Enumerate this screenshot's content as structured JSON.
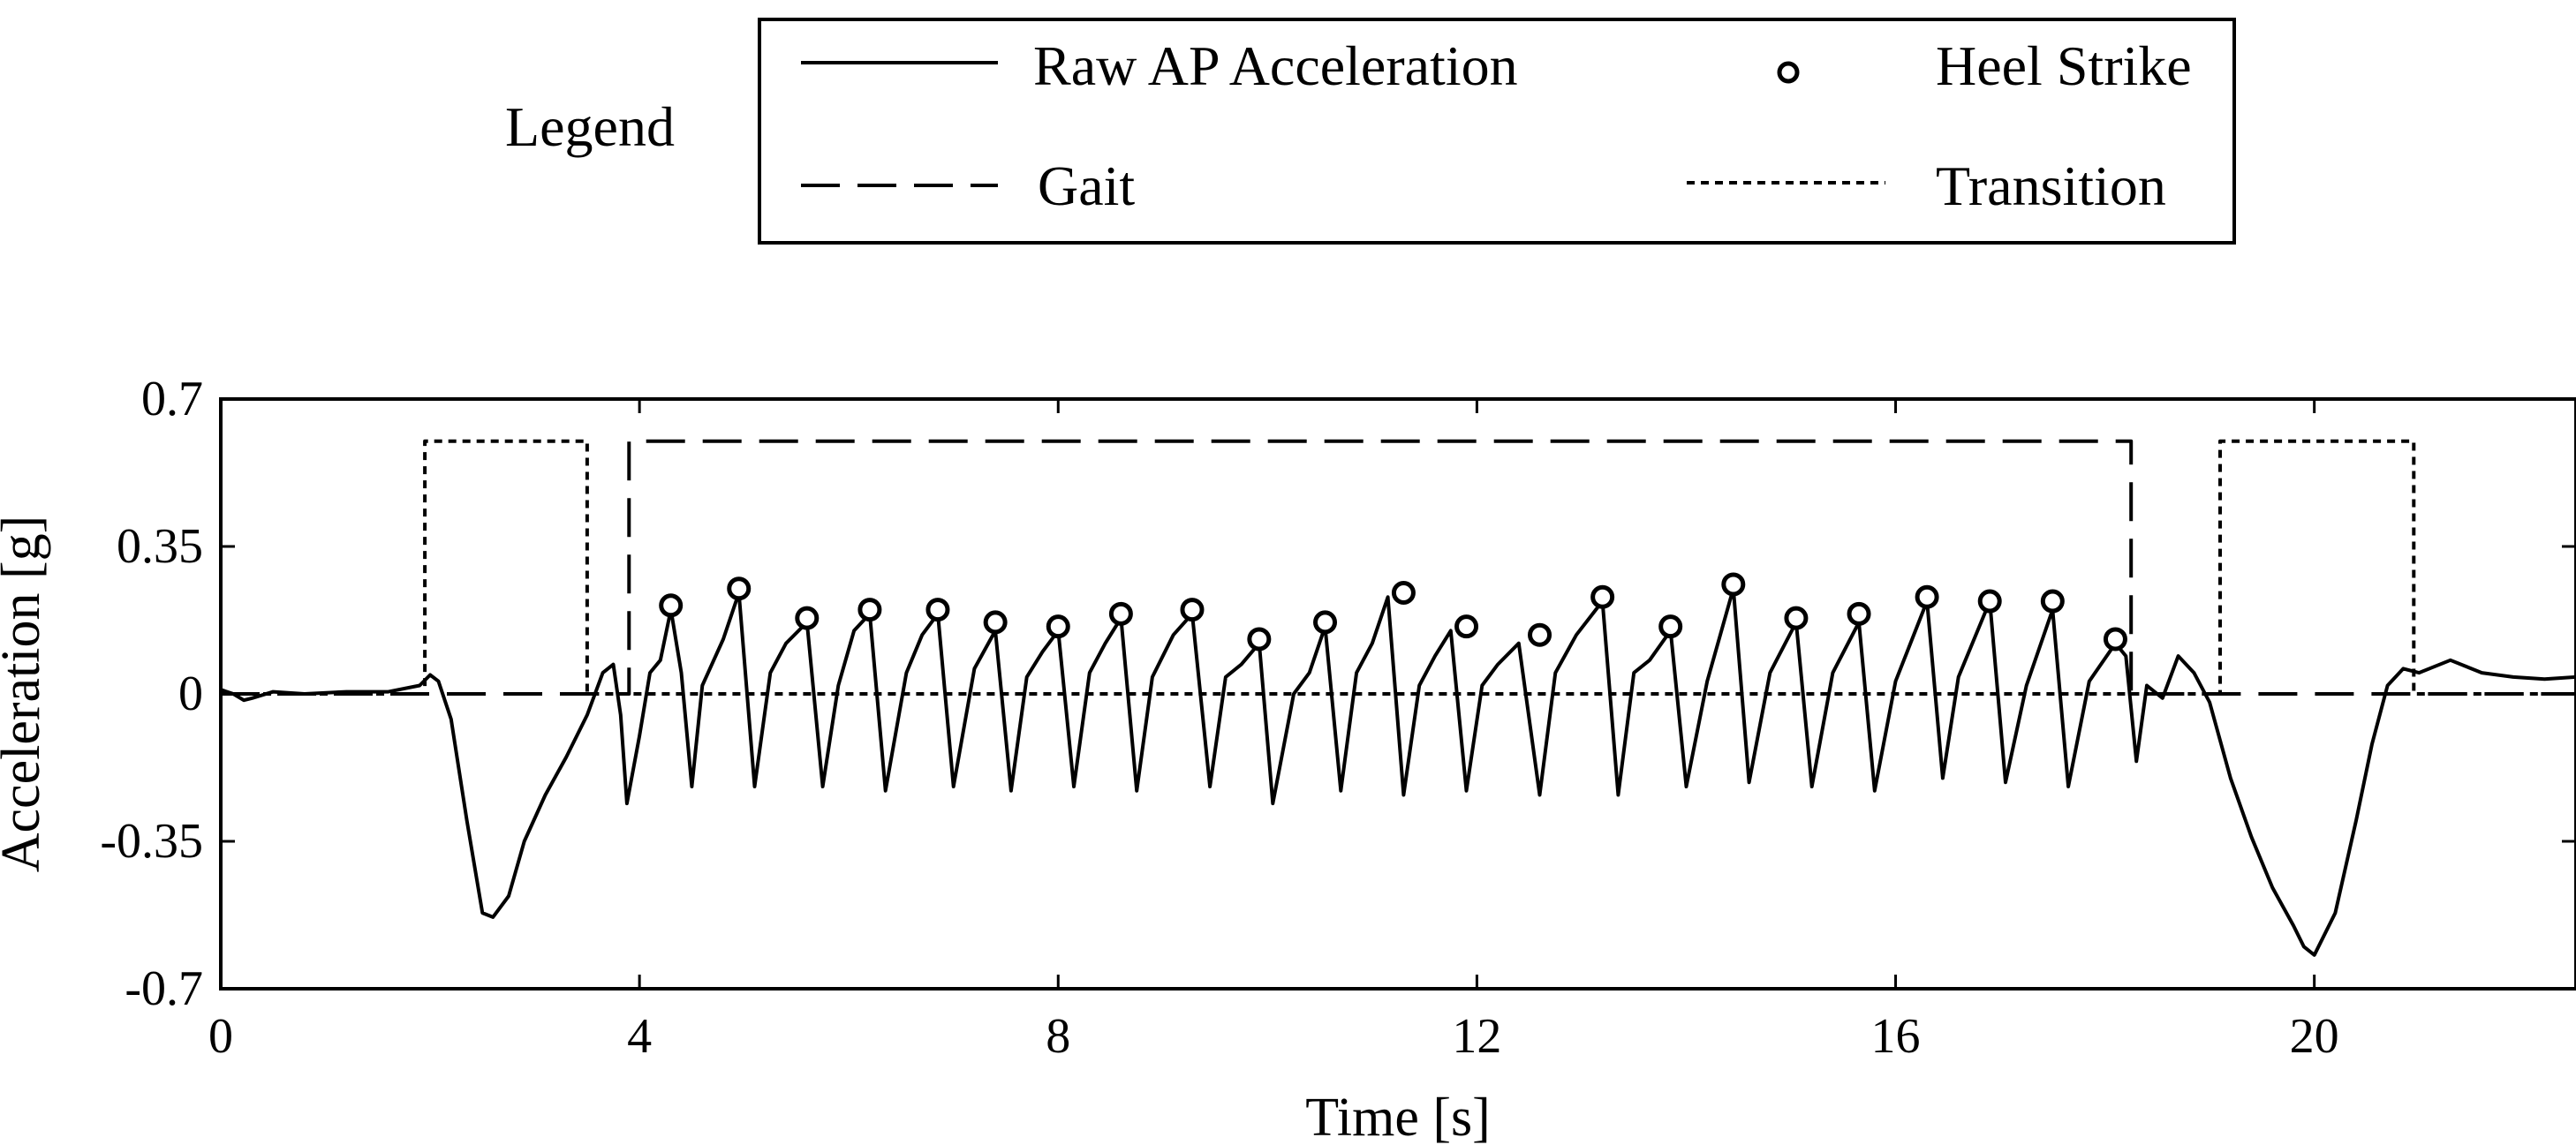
{
  "chart_data": {
    "type": "line",
    "title": "",
    "xlabel": "Time [s]",
    "ylabel": "Acceleration [g]",
    "xlim": [
      0,
      22.5
    ],
    "ylim": [
      -0.7,
      0.7
    ],
    "x_ticks": [
      0,
      4,
      8,
      12,
      16,
      20
    ],
    "y_ticks": [
      -0.7,
      -0.35,
      0,
      0.35,
      0.7
    ],
    "x_tick_labels": [
      "0",
      "4",
      "8",
      "12",
      "16",
      "20"
    ],
    "y_tick_labels": [
      "-0.7",
      "-0.35",
      "0",
      "0.35",
      "0.7"
    ],
    "grid": false,
    "legend": {
      "title": "Legend",
      "placement": "top-center",
      "entries": [
        {
          "label": "Raw AP Acceleration",
          "style": "solid"
        },
        {
          "label": "Heel Strike",
          "style": "circle-marker"
        },
        {
          "label": "Gait",
          "style": "dashed"
        },
        {
          "label": "Transition",
          "style": "dotted"
        }
      ]
    },
    "series": [
      {
        "name": "Raw AP Acceleration",
        "style": "solid",
        "x": [
          0,
          0.12,
          0.22,
          0.3,
          0.5,
          0.8,
          1.2,
          1.6,
          1.9,
          2.0,
          2.08,
          2.2,
          2.35,
          2.5,
          2.6,
          2.75,
          2.9,
          3.1,
          3.3,
          3.5,
          3.65,
          3.75,
          3.82,
          3.88,
          4.0,
          4.1,
          4.2,
          4.3,
          4.4,
          4.5,
          4.6,
          4.8,
          4.95,
          5.1,
          5.25,
          5.4,
          5.6,
          5.75,
          5.9,
          6.05,
          6.2,
          6.35,
          6.55,
          6.7,
          6.85,
          7.0,
          7.2,
          7.4,
          7.55,
          7.7,
          7.85,
          8.0,
          8.15,
          8.3,
          8.45,
          8.6,
          8.75,
          8.9,
          9.1,
          9.28,
          9.45,
          9.6,
          9.75,
          9.92,
          10.05,
          10.25,
          10.4,
          10.55,
          10.7,
          10.85,
          11.0,
          11.15,
          11.3,
          11.45,
          11.6,
          11.75,
          11.9,
          12.05,
          12.2,
          12.4,
          12.6,
          12.75,
          12.95,
          13.2,
          13.35,
          13.5,
          13.65,
          13.85,
          14.0,
          14.2,
          14.45,
          14.6,
          14.8,
          15.05,
          15.2,
          15.4,
          15.65,
          15.8,
          16.0,
          16.3,
          16.45,
          16.6,
          16.9,
          17.05,
          17.25,
          17.5,
          17.65,
          17.85,
          18.1,
          18.2,
          18.3,
          18.4,
          18.55,
          18.7,
          18.85,
          19.0,
          19.2,
          19.4,
          19.6,
          19.8,
          19.9,
          20.0,
          20.2,
          20.4,
          20.55,
          20.7,
          20.85,
          21.0,
          21.3,
          21.6,
          21.9,
          22.2,
          22.5
        ],
        "values": [
          0.01,
          0.0,
          -0.015,
          -0.01,
          0.005,
          0.0,
          0.005,
          0.005,
          0.02,
          0.045,
          0.03,
          -0.06,
          -0.3,
          -0.52,
          -0.53,
          -0.48,
          -0.35,
          -0.24,
          -0.15,
          -0.05,
          0.05,
          0.07,
          -0.05,
          -0.26,
          -0.1,
          0.05,
          0.08,
          0.2,
          0.05,
          -0.22,
          0.02,
          0.13,
          0.24,
          -0.22,
          0.05,
          0.12,
          0.17,
          -0.22,
          0.02,
          0.15,
          0.19,
          -0.23,
          0.05,
          0.14,
          0.19,
          -0.22,
          0.06,
          0.15,
          -0.23,
          0.04,
          0.1,
          0.15,
          -0.22,
          0.05,
          0.12,
          0.18,
          -0.23,
          0.04,
          0.14,
          0.19,
          -0.22,
          0.04,
          0.07,
          0.12,
          -0.26,
          0.0,
          0.05,
          0.16,
          -0.23,
          0.05,
          0.12,
          0.23,
          -0.24,
          0.02,
          0.09,
          0.15,
          -0.23,
          0.02,
          0.07,
          0.12,
          -0.24,
          0.05,
          0.14,
          0.22,
          -0.24,
          0.05,
          0.08,
          0.15,
          -0.22,
          0.03,
          0.25,
          -0.21,
          0.05,
          0.17,
          -0.22,
          0.05,
          0.17,
          -0.23,
          0.03,
          0.22,
          -0.2,
          0.04,
          0.22,
          -0.21,
          0.02,
          0.2,
          -0.22,
          0.03,
          0.12,
          0.09,
          -0.16,
          0.02,
          -0.01,
          0.09,
          0.05,
          -0.02,
          -0.2,
          -0.34,
          -0.46,
          -0.55,
          -0.6,
          -0.62,
          -0.52,
          -0.3,
          -0.12,
          0.02,
          0.06,
          0.05,
          0.08,
          0.05,
          0.04,
          0.035,
          0.04
        ]
      },
      {
        "name": "Heel Strike",
        "style": "circle-marker",
        "x": [
          4.3,
          4.95,
          5.6,
          6.2,
          6.85,
          7.4,
          8.0,
          8.6,
          9.28,
          9.92,
          10.55,
          11.3,
          11.9,
          12.6,
          13.2,
          13.85,
          14.45,
          15.05,
          15.65,
          16.3,
          16.9,
          17.5,
          18.1
        ],
        "values": [
          0.21,
          0.25,
          0.18,
          0.2,
          0.2,
          0.17,
          0.16,
          0.19,
          0.2,
          0.13,
          0.17,
          0.24,
          0.16,
          0.14,
          0.23,
          0.16,
          0.26,
          0.18,
          0.19,
          0.23,
          0.22,
          0.22,
          0.13
        ]
      },
      {
        "name": "Gait",
        "style": "dashed",
        "x": [
          0,
          3.9,
          3.9,
          18.25,
          18.25,
          22.5
        ],
        "values": [
          0,
          0,
          0.6,
          0.6,
          0,
          0
        ]
      },
      {
        "name": "Transition",
        "style": "dotted",
        "x": [
          0,
          1.95,
          1.95,
          3.5,
          3.5,
          19.1,
          19.1,
          20.95,
          20.95,
          22.5
        ],
        "values": [
          0,
          0,
          0.6,
          0.6,
          0,
          0,
          0.6,
          0.6,
          0,
          0
        ]
      }
    ]
  }
}
